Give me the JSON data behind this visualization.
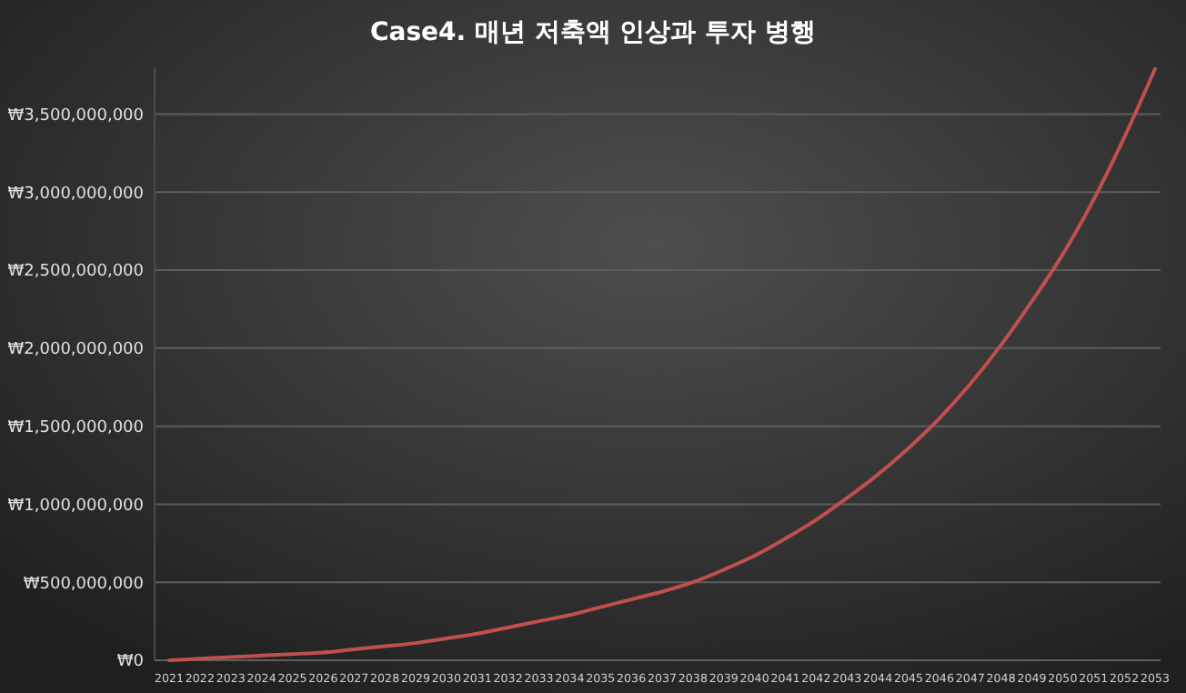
{
  "chart_data": {
    "type": "line",
    "title": "Case4. 매년 저축액 인상과 투자 병행",
    "categories": [
      "2021",
      "2022",
      "2023",
      "2024",
      "2025",
      "2026",
      "2027",
      "2028",
      "2029",
      "2030",
      "2031",
      "2032",
      "2033",
      "2034",
      "2035",
      "2036",
      "2037",
      "2038",
      "2039",
      "2040",
      "2041",
      "2042",
      "2043",
      "2044",
      "2045",
      "2046",
      "2047",
      "2048",
      "2049",
      "2050",
      "2051",
      "2052",
      "2053"
    ],
    "series": [
      {
        "color": "#c0504d",
        "values": [
          0,
          10000000,
          20000000,
          30000000,
          40000000,
          50000000,
          70000000,
          90000000,
          110000000,
          140000000,
          170000000,
          210000000,
          250000000,
          290000000,
          340000000,
          390000000,
          440000000,
          500000000,
          580000000,
          670000000,
          780000000,
          900000000,
          1040000000,
          1190000000,
          1360000000,
          1550000000,
          1770000000,
          2020000000,
          2300000000,
          2600000000,
          2950000000,
          3350000000,
          3790000000
        ]
      }
    ],
    "ylim": [
      0,
      3800000000
    ],
    "yticks": [
      {
        "value": 0,
        "label": "₩0"
      },
      {
        "value": 500000000,
        "label": "₩500,000,000"
      },
      {
        "value": 1000000000,
        "label": "₩1,000,000,000"
      },
      {
        "value": 1500000000,
        "label": "₩1,500,000,000"
      },
      {
        "value": 2000000000,
        "label": "₩2,000,000,000"
      },
      {
        "value": 2500000000,
        "label": "₩2,500,000,000"
      },
      {
        "value": 3000000000,
        "label": "₩3,000,000,000"
      },
      {
        "value": 3500000000,
        "label": "₩3,500,000,000"
      }
    ],
    "grid": "y",
    "marker": "none",
    "line_style": "solid"
  }
}
